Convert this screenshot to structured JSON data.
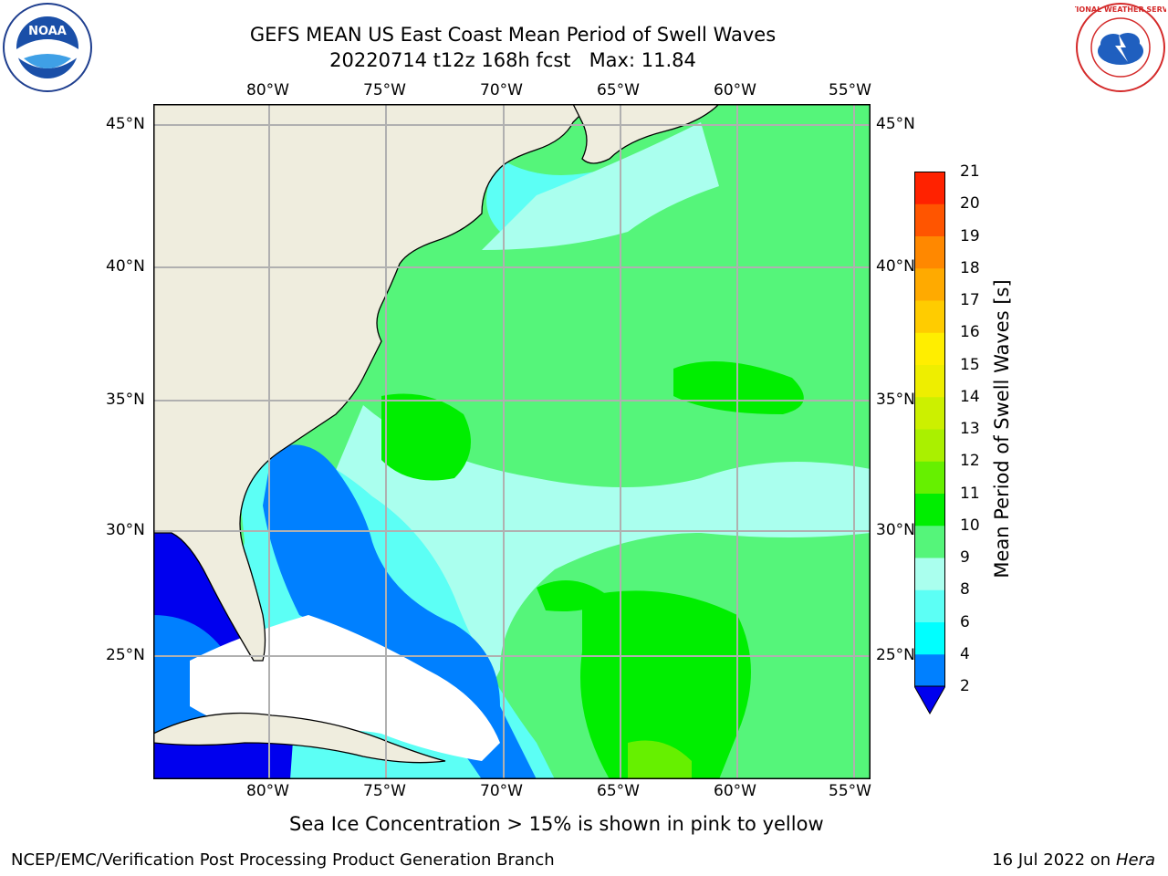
{
  "title": {
    "line1": "GEFS MEAN US East Coast Mean Period of Swell Waves",
    "line2": "20220714 t12z 168h fcst   Max: 11.84"
  },
  "map": {
    "lon_labels": [
      "80°W",
      "75°W",
      "70°W",
      "65°W",
      "60°W",
      "55°W"
    ],
    "lat_labels": [
      "45°N",
      "40°N",
      "35°N",
      "30°N",
      "25°N"
    ],
    "colors": {
      "land": "#efedde",
      "grid": "#b0b0b0",
      "ice_free_white": "#ffffff"
    }
  },
  "colorbar": {
    "label": "Mean Period of Swell Waves [s]",
    "ticks": [
      "21",
      "20",
      "19",
      "18",
      "17",
      "16",
      "15",
      "14",
      "13",
      "12",
      "11",
      "10",
      "9",
      "8",
      "6",
      "4",
      "2"
    ],
    "colors": [
      "#0000ee",
      "#0080ff",
      "#00ffff",
      "#5cfff5",
      "#aaffee",
      "#55f57a",
      "#00ee00",
      "#66f000",
      "#aaf000",
      "#ccf000",
      "#eeee00",
      "#ffee00",
      "#ffcc00",
      "#ffaa00",
      "#ff8800",
      "#ff5500",
      "#ff2200",
      "#ff0000"
    ]
  },
  "caption": "Sea Ice Concentration > 15% is shown in pink to yellow",
  "footer": {
    "left": "NCEP/EMC/Verification Post Processing Product Generation Branch",
    "right_prefix": "16 Jul 2022 on ",
    "right_machine": "Hera"
  },
  "logos": {
    "noaa_text": "NOAA",
    "nws_text": "NATIONAL WEATHER SERVICE"
  }
}
